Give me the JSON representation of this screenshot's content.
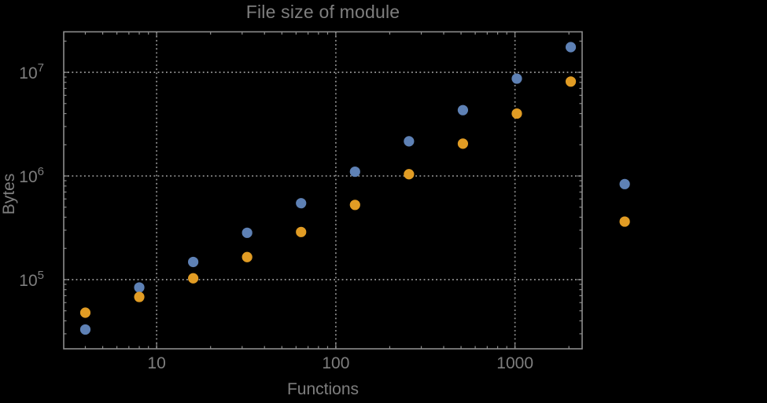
{
  "title": "File size of module",
  "chart_data": {
    "type": "scatter",
    "title": "File size of module",
    "xlabel": "Functions",
    "ylabel": "Bytes",
    "xscale": "log",
    "yscale": "log",
    "xlim": [
      3.03,
      2370
    ],
    "ylim": [
      21500,
      24600000
    ],
    "grid": "dotted lines at decade ticks, frame on all four sides, ticks inward",
    "legend_position": "none",
    "x": [
      4,
      8,
      16,
      32,
      64,
      128,
      256,
      512,
      1024,
      2048,
      4096
    ],
    "series": [
      {
        "name": "series-blue",
        "color": "#5e81b5",
        "values": [
          33000,
          84000,
          148000,
          283000,
          546000,
          1100000,
          2160000,
          4320000,
          8700000,
          17500000,
          835000
        ]
      },
      {
        "name": "series-orange",
        "color": "#e19c24",
        "values": [
          48000,
          68000,
          103000,
          165000,
          288000,
          526000,
          1040000,
          2050000,
          4000000,
          8150000,
          363000
        ]
      }
    ],
    "x_ticks": [
      {
        "value": 10,
        "label": "10"
      },
      {
        "value": 100,
        "label": "100"
      },
      {
        "value": 1000,
        "label": "1000"
      }
    ],
    "y_ticks": [
      {
        "value": 100000,
        "base": "10",
        "exp": "5"
      },
      {
        "value": 1000000,
        "base": "10",
        "exp": "6"
      },
      {
        "value": 10000000,
        "base": "10",
        "exp": "7"
      }
    ],
    "marker_size_px": 13.2
  },
  "styles": {
    "background": "#000000",
    "frame_color": "#8d8d8d",
    "grid_color": "#8d8d8d",
    "text_color": "#7e7e7e",
    "tick_label_color": "#7e7e7e"
  }
}
